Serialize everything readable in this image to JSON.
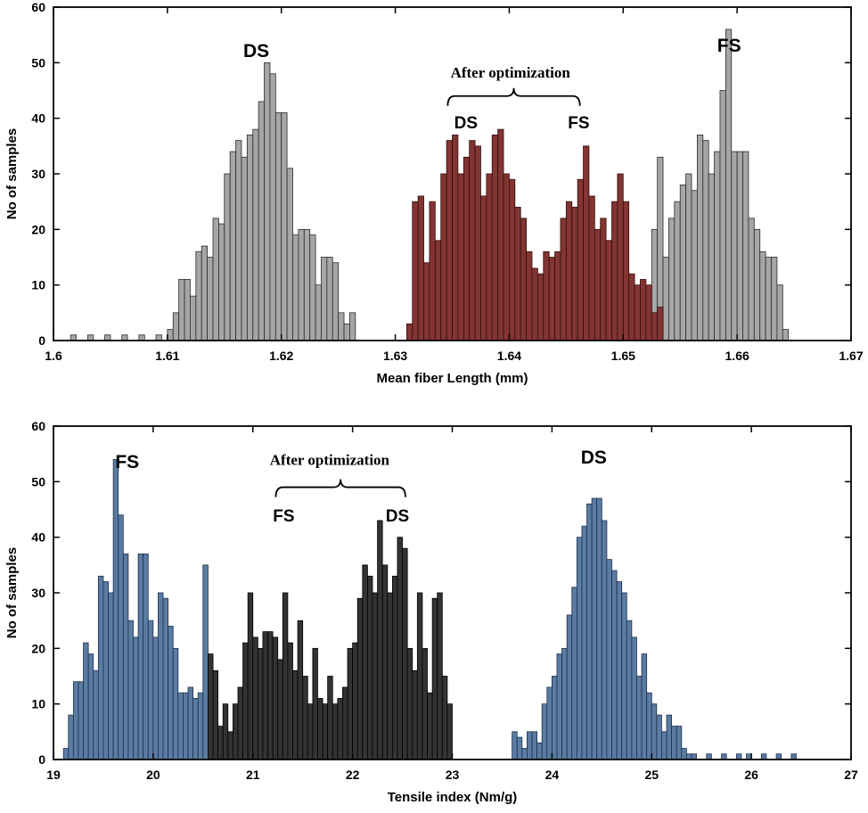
{
  "page": {
    "background": "#ffffff"
  },
  "chart_data": [
    {
      "id": "fiber-length",
      "type": "bar",
      "title": "",
      "xlabel": "Mean fiber Length (mm)",
      "ylabel": "No of samples",
      "xlim": [
        1.6,
        1.67
      ],
      "ylim": [
        0,
        60
      ],
      "xticks": [
        1.6,
        1.61,
        1.62,
        1.63,
        1.64,
        1.65,
        1.66,
        1.67
      ],
      "xtick_labels": [
        "1.6",
        "1.61",
        "1.62",
        "1.63",
        "1.64",
        "1.65",
        "1.66",
        "1.67"
      ],
      "yticks": [
        0,
        10,
        20,
        30,
        40,
        50,
        60
      ],
      "grid": false,
      "legend": "none",
      "series": [
        {
          "name": "DS",
          "color": "#a6a6a6",
          "edge": "#2b2b2b",
          "bin_start": 1.6015,
          "bin_width": 0.0005,
          "counts": [
            1,
            0,
            0,
            1,
            0,
            0,
            1,
            0,
            0,
            1,
            0,
            0,
            1,
            0,
            0,
            1,
            0,
            2,
            5,
            11,
            11,
            8,
            16,
            17,
            15,
            22,
            21,
            30,
            34,
            36,
            33,
            37,
            38,
            43,
            50,
            48,
            41,
            41,
            31,
            19,
            20,
            20,
            19,
            10,
            15,
            15,
            14,
            5,
            3,
            5
          ]
        },
        {
          "name": "FS",
          "color": "#a6a6a6",
          "edge": "#2b2b2b",
          "bin_start": 1.6525,
          "bin_width": 0.0005,
          "counts": [
            20,
            33,
            15,
            22,
            25,
            28,
            30,
            27,
            37,
            36,
            30,
            34,
            45,
            56,
            34,
            34,
            34,
            22,
            20,
            16,
            15,
            15,
            10,
            2
          ]
        },
        {
          "name": "After optimization",
          "color": "#823532",
          "edge": "#330d0c",
          "bin_start": 1.631,
          "bin_width": 0.0005,
          "counts": [
            3,
            25,
            26,
            14,
            25,
            18,
            30,
            36,
            37,
            30,
            33,
            36,
            35,
            26,
            30,
            37,
            38,
            30,
            29,
            24,
            22,
            16,
            13,
            12,
            16,
            15,
            16,
            22,
            25,
            24,
            29,
            35,
            26,
            20,
            22,
            18,
            25,
            30,
            25,
            12,
            10,
            11,
            10,
            5,
            6
          ]
        }
      ],
      "annotations": [
        {
          "text": "DS",
          "x": 1.6178,
          "y": 51,
          "style": "peak-label"
        },
        {
          "text": "FS",
          "x": 1.6593,
          "y": 52,
          "style": "peak-label"
        },
        {
          "text": "After optimization",
          "x": 1.6401,
          "y": 47.3,
          "style": "opt-label"
        },
        {
          "text": "DS",
          "x": 1.6362,
          "y": 38.2,
          "style": "sub-label"
        },
        {
          "text": "FS",
          "x": 1.6461,
          "y": 38.2,
          "style": "sub-label"
        }
      ],
      "brace": {
        "x1": 1.6346,
        "x2": 1.6462,
        "y": 44
      }
    },
    {
      "id": "tensile-index",
      "type": "bar",
      "title": "",
      "xlabel": "Tensile index (Nm/g)",
      "ylabel": "No of samples",
      "xlim": [
        19,
        27
      ],
      "ylim": [
        0,
        60
      ],
      "xticks": [
        19,
        20,
        21,
        22,
        23,
        24,
        25,
        26,
        27
      ],
      "xtick_labels": [
        "19",
        "20",
        "21",
        "22",
        "23",
        "24",
        "25",
        "26",
        "27"
      ],
      "yticks": [
        0,
        10,
        20,
        30,
        40,
        50,
        60
      ],
      "grid": false,
      "legend": "none",
      "series": [
        {
          "name": "FS",
          "color": "#5a7ca3",
          "edge": "#1d2f49",
          "bin_start": 19.1,
          "bin_width": 0.05,
          "counts": [
            2,
            8,
            14,
            14,
            21,
            19,
            16,
            33,
            32,
            30,
            54,
            44,
            37,
            25,
            22,
            37,
            37,
            25,
            22,
            30,
            29,
            24,
            20,
            12,
            12,
            13,
            11,
            12,
            35,
            18,
            5
          ]
        },
        {
          "name": "DS",
          "color": "#5a7ca3",
          "edge": "#1d2f49",
          "bin_start": 23.6,
          "bin_width": 0.05,
          "counts": [
            5,
            4,
            2,
            5,
            5,
            3,
            10,
            13,
            15,
            19,
            20,
            26,
            31,
            40,
            42,
            46,
            47,
            47,
            43,
            36,
            34,
            32,
            30,
            25,
            22,
            15,
            19,
            12,
            10,
            8,
            5,
            8,
            6,
            6,
            2,
            1,
            1,
            0,
            0,
            1,
            0,
            0,
            1,
            0,
            0,
            1,
            0,
            1,
            0,
            0,
            1,
            0,
            0,
            1,
            0,
            0,
            1
          ]
        },
        {
          "name": "After optimization",
          "color": "#333333",
          "edge": "#000000",
          "bin_start": 20.55,
          "bin_width": 0.05,
          "counts": [
            19,
            16,
            6,
            10,
            5,
            10,
            13,
            21,
            30,
            22,
            20,
            23,
            23,
            22,
            18,
            30,
            21,
            16,
            25,
            15,
            10,
            20,
            11,
            10,
            15,
            10,
            11,
            13,
            20,
            21,
            29,
            35,
            33,
            30,
            43,
            35,
            30,
            33,
            40,
            38,
            20,
            16,
            30,
            20,
            12,
            29,
            30,
            15,
            10
          ]
        }
      ],
      "annotations": [
        {
          "text": "FS",
          "x": 19.74,
          "y": 52.5,
          "style": "peak-label"
        },
        {
          "text": "After optimization",
          "x": 21.77,
          "y": 53,
          "style": "opt-label"
        },
        {
          "text": "FS",
          "x": 21.31,
          "y": 42.8,
          "style": "sub-label"
        },
        {
          "text": "DS",
          "x": 22.45,
          "y": 42.8,
          "style": "sub-label"
        },
        {
          "text": "DS",
          "x": 24.42,
          "y": 53.3,
          "style": "peak-label"
        }
      ],
      "brace": {
        "x1": 21.23,
        "x2": 22.53,
        "y": 49
      }
    }
  ]
}
